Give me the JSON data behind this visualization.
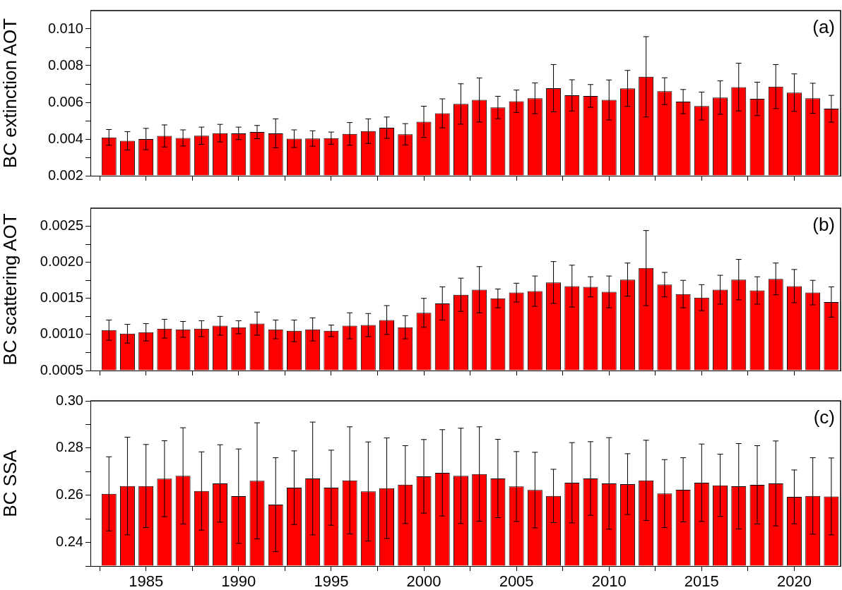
{
  "chart_data": [
    {
      "type": "bar",
      "ylabel": "BC extinction AOT",
      "annotations": [
        "(a)"
      ],
      "tick_labels": "y",
      "x": [
        1983,
        1984,
        1985,
        1986,
        1987,
        1988,
        1989,
        1990,
        1991,
        1992,
        1993,
        1994,
        1995,
        1996,
        1997,
        1998,
        1999,
        2000,
        2001,
        2002,
        2003,
        2004,
        2005,
        2006,
        2007,
        2008,
        2009,
        2010,
        2011,
        2012,
        2013,
        2014,
        2015,
        2016,
        2017,
        2018,
        2019,
        2020,
        2021,
        2022
      ],
      "values": [
        0.00409,
        0.0039,
        0.004,
        0.00417,
        0.00406,
        0.00418,
        0.00432,
        0.00431,
        0.00438,
        0.00431,
        0.00402,
        0.00403,
        0.00405,
        0.00428,
        0.00443,
        0.00462,
        0.00426,
        0.00494,
        0.0054,
        0.00591,
        0.00613,
        0.00572,
        0.00606,
        0.00622,
        0.00677,
        0.00638,
        0.00635,
        0.00613,
        0.00676,
        0.00739,
        0.00661,
        0.00604,
        0.0058,
        0.00626,
        0.00683,
        0.00619,
        0.00686,
        0.00653,
        0.00622,
        0.00565
      ],
      "errors": [
        0.00043,
        0.0005,
        0.00058,
        0.0006,
        0.00044,
        0.00047,
        0.00048,
        0.00034,
        0.00036,
        0.00079,
        0.00048,
        0.00042,
        0.00033,
        0.00062,
        0.00067,
        0.00058,
        0.00058,
        0.00085,
        0.00079,
        0.0011,
        0.0012,
        0.00061,
        0.00061,
        0.00084,
        0.00129,
        0.00085,
        0.00062,
        0.00109,
        0.00098,
        0.00219,
        0.00073,
        0.00066,
        0.00076,
        0.00091,
        0.0013,
        0.00091,
        0.0012,
        0.00102,
        0.00082,
        0.00073
      ],
      "color": "#ff0000",
      "xlim": [
        1982,
        2022.5
      ],
      "xticks": [
        {
          "value": 1982.5,
          "label": null
        },
        1985,
        {
          "value": 1987.5,
          "label": null
        },
        1990,
        {
          "value": 1992.5,
          "label": null
        },
        1995,
        {
          "value": 1997.5,
          "label": null
        },
        2000,
        {
          "value": 2002.5,
          "label": null
        },
        2005,
        {
          "value": 2007.5,
          "label": null
        },
        2010,
        {
          "value": 2012.5,
          "label": null
        },
        2015,
        {
          "value": 2017.5,
          "label": null
        },
        2020
      ],
      "ylim": [
        0.002,
        0.011
      ],
      "yticks": [
        {
          "value": 0.002,
          "label": "0.002"
        },
        {
          "value": 0.003,
          "label": null
        },
        {
          "value": 0.004,
          "label": "0.004"
        },
        {
          "value": 0.005,
          "label": null
        },
        {
          "value": 0.006,
          "label": "0.006"
        },
        {
          "value": 0.007,
          "label": null
        },
        {
          "value": 0.008,
          "label": "0.008"
        },
        {
          "value": 0.009,
          "label": null
        },
        {
          "value": 0.01,
          "label": "0.010"
        }
      ]
    },
    {
      "type": "bar",
      "ylabel": "BC scattering AOT",
      "annotations": [
        "(b)"
      ],
      "tick_labels": "y",
      "x": [
        1983,
        1984,
        1985,
        1986,
        1987,
        1988,
        1989,
        1990,
        1991,
        1992,
        1993,
        1994,
        1995,
        1996,
        1997,
        1998,
        1999,
        2000,
        2001,
        2002,
        2003,
        2004,
        2005,
        2006,
        2007,
        2008,
        2009,
        2010,
        2011,
        2012,
        2013,
        2014,
        2015,
        2016,
        2017,
        2018,
        2019,
        2020,
        2021,
        2022
      ],
      "values": [
        0.00106,
        0.00101,
        0.00103,
        0.00108,
        0.00107,
        0.00108,
        0.00112,
        0.0011,
        0.00115,
        0.00107,
        0.00105,
        0.00107,
        0.00105,
        0.00112,
        0.00113,
        0.0012,
        0.0011,
        0.0013,
        0.00143,
        0.00155,
        0.00162,
        0.0015,
        0.00158,
        0.0016,
        0.00172,
        0.00167,
        0.00166,
        0.00159,
        0.00176,
        0.00192,
        0.00169,
        0.00156,
        0.00151,
        0.00162,
        0.00176,
        0.00161,
        0.00177,
        0.00167,
        0.00158,
        0.00145
      ],
      "errors": [
        0.00014,
        0.00013,
        0.00012,
        0.00013,
        0.00011,
        0.00011,
        0.00013,
        9e-05,
        0.00016,
        0.00013,
        0.00015,
        0.00016,
        8e-05,
        0.00018,
        0.00016,
        0.0002,
        0.00016,
        0.0002,
        0.00023,
        0.00023,
        0.00032,
        0.00013,
        0.00013,
        0.00021,
        0.00029,
        0.00029,
        0.00014,
        0.00022,
        0.00023,
        0.00052,
        0.00017,
        0.00019,
        0.00018,
        0.0002,
        0.00028,
        0.00019,
        0.00022,
        0.00023,
        0.00017,
        0.00021
      ],
      "color": "#ff0000",
      "xlim": [
        1982,
        2022.5
      ],
      "xticks": [
        {
          "value": 1982.5,
          "label": null
        },
        1985,
        {
          "value": 1987.5,
          "label": null
        },
        1990,
        {
          "value": 1992.5,
          "label": null
        },
        1995,
        {
          "value": 1997.5,
          "label": null
        },
        2000,
        {
          "value": 2002.5,
          "label": null
        },
        2005,
        {
          "value": 2007.5,
          "label": null
        },
        2010,
        {
          "value": 2012.5,
          "label": null
        },
        2015,
        {
          "value": 2017.5,
          "label": null
        },
        2020
      ],
      "ylim": [
        0.0005,
        0.00275
      ],
      "yticks": [
        {
          "value": 0.0005,
          "label": "0.0005"
        },
        {
          "value": 0.00075,
          "label": null
        },
        {
          "value": 0.001,
          "label": "0.0010"
        },
        {
          "value": 0.00125,
          "label": null
        },
        {
          "value": 0.0015,
          "label": "0.0015"
        },
        {
          "value": 0.00175,
          "label": null
        },
        {
          "value": 0.002,
          "label": "0.0020"
        },
        {
          "value": 0.00225,
          "label": null
        },
        {
          "value": 0.0025,
          "label": "0.0025"
        }
      ]
    },
    {
      "type": "bar",
      "ylabel": "BC SSA",
      "annotations": [
        "(c)"
      ],
      "x": [
        1983,
        1984,
        1985,
        1986,
        1987,
        1988,
        1989,
        1990,
        1991,
        1992,
        1993,
        1994,
        1995,
        1996,
        1997,
        1998,
        1999,
        2000,
        2001,
        2002,
        2003,
        2004,
        2005,
        2006,
        2007,
        2008,
        2009,
        2010,
        2011,
        2012,
        2013,
        2014,
        2015,
        2016,
        2017,
        2018,
        2019,
        2020,
        2021,
        2022
      ],
      "values": [
        0.2606,
        0.2639,
        0.2639,
        0.267,
        0.2682,
        0.2618,
        0.265,
        0.2596,
        0.2661,
        0.256,
        0.2632,
        0.2671,
        0.2632,
        0.2663,
        0.2616,
        0.263,
        0.2645,
        0.268,
        0.2695,
        0.2682,
        0.269,
        0.2671,
        0.2637,
        0.2622,
        0.2597,
        0.2653,
        0.2671,
        0.265,
        0.2647,
        0.2663,
        0.2607,
        0.2623,
        0.2653,
        0.2642,
        0.2638,
        0.2644,
        0.265,
        0.2593,
        0.2597,
        0.2595
      ],
      "errors": [
        0.0157,
        0.0207,
        0.0176,
        0.0161,
        0.0204,
        0.0166,
        0.0164,
        0.02,
        0.0246,
        0.0199,
        0.0156,
        0.0239,
        0.0159,
        0.0227,
        0.021,
        0.0213,
        0.0165,
        0.0156,
        0.0183,
        0.0202,
        0.02,
        0.0166,
        0.0148,
        0.016,
        0.0113,
        0.017,
        0.0156,
        0.0194,
        0.0129,
        0.017,
        0.0144,
        0.0136,
        0.0164,
        0.0132,
        0.0181,
        0.0166,
        0.018,
        0.0114,
        0.0162,
        0.0163
      ],
      "color": "#ff0000",
      "xlim": [
        1982,
        2022.5
      ],
      "xticks": [
        {
          "value": 1982.5,
          "label": null
        },
        1985,
        {
          "value": 1987.5,
          "label": null
        },
        1990,
        {
          "value": 1992.5,
          "label": null
        },
        1995,
        {
          "value": 1997.5,
          "label": null
        },
        2000,
        {
          "value": 2002.5,
          "label": null
        },
        2005,
        {
          "value": 2007.5,
          "label": null
        },
        2010,
        {
          "value": 2012.5,
          "label": null
        },
        2015,
        {
          "value": 2017.5,
          "label": null
        },
        2020
      ],
      "ylim": [
        0.23,
        0.3
      ],
      "yticks": [
        {
          "value": 0.23,
          "label": null
        },
        {
          "value": 0.24,
          "label": "0.24"
        },
        {
          "value": 0.25,
          "label": null
        },
        {
          "value": 0.26,
          "label": "0.26"
        },
        {
          "value": 0.27,
          "label": null
        },
        {
          "value": 0.28,
          "label": "0.28"
        },
        {
          "value": 0.29,
          "label": null
        },
        {
          "value": 0.3,
          "label": "0.30"
        }
      ]
    }
  ]
}
